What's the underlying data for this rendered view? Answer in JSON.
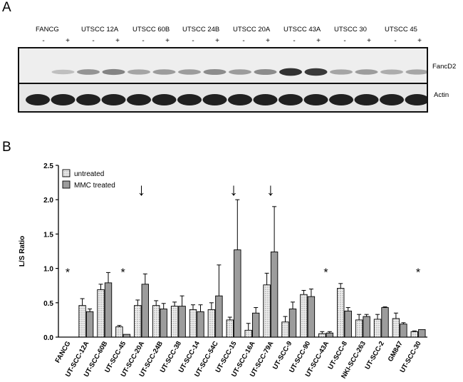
{
  "panel_a": {
    "letter": "A",
    "lane_labels": [
      "FANCG",
      "UTSCC 12A",
      "UTSCC 60B",
      "UTSCC 24B",
      "UTSCC 20A",
      "UTSCC 43A",
      "UTSCC 30",
      "UTSCC 45"
    ],
    "treatment_signs": [
      "-",
      "+"
    ],
    "band_labels": [
      "FancD2",
      "Actin"
    ],
    "fancd2_intensity_note": "",
    "colors": {
      "blot_border": "#111111",
      "band": "#1a1a1a"
    }
  },
  "panel_b": {
    "letter": "B"
  },
  "chart_data": {
    "type": "bar",
    "title": "",
    "xlabel": "",
    "ylabel": "L/S Ratio",
    "ylim": [
      0,
      2.5
    ],
    "yticks": [
      "0.0",
      "0.5",
      "1.0",
      "1.5",
      "2.0",
      "2.5"
    ],
    "grid": false,
    "legend_position": "top-left",
    "categories": [
      "FANCG",
      "UT-SCC-12A",
      "UT-SCC-60B",
      "UT-SCC-45",
      "UT-SCC-20A",
      "UT-SCC-24B",
      "UT-SCC-38",
      "UT-SCC-14",
      "UT-SCC-54C",
      "UT-SCC-15",
      "UT-SCC-16A",
      "UT-SCC-79A",
      "UT-SCC-9",
      "UT-SCC-90",
      "UT-SCC-43A",
      "UT-SCC-8",
      "NKI-SCC-263",
      "UT-SCC-2",
      "GM847",
      "UT-SCC-30"
    ],
    "series": [
      {
        "name": "untreated",
        "color": "#e8e8e8",
        "pattern": "dotted",
        "values": [
          0,
          0.46,
          0.69,
          0.15,
          0.46,
          0.46,
          0.45,
          0.4,
          0.4,
          0.25,
          0.1,
          0.76,
          0.22,
          0.62,
          0.05,
          0.71,
          0.25,
          0.26,
          0.27,
          0.08
        ],
        "errors": [
          0,
          0.1,
          0.08,
          0.02,
          0.08,
          0.07,
          0.06,
          0.07,
          0.1,
          0.04,
          0.1,
          0.17,
          0.08,
          0.06,
          0.03,
          0.07,
          0.08,
          0.07,
          0.08,
          0.01
        ]
      },
      {
        "name": "MMC treated",
        "color": "#9c9c9c",
        "pattern": "solid",
        "values": [
          0,
          0.37,
          0.79,
          0.04,
          0.77,
          0.41,
          0.45,
          0.37,
          0.6,
          1.27,
          0.35,
          1.24,
          0.41,
          0.59,
          0.06,
          0.38,
          0.3,
          0.43,
          0.19,
          0.11
        ],
        "errors": [
          0,
          0.04,
          0.15,
          0.0,
          0.15,
          0.08,
          0.15,
          0.1,
          0.45,
          0.73,
          0.08,
          0.66,
          0.1,
          0.11,
          0.02,
          0.05,
          0.03,
          0.01,
          0.02,
          0.0
        ]
      }
    ],
    "annotations": {
      "asterisk": {
        "symbol": "*",
        "categories": [
          "FANCG",
          "UT-SCC-45",
          "UT-SCC-43A",
          "UT-SCC-30"
        ],
        "value": 0.97
      },
      "arrows": {
        "symbol": "↓",
        "categories": [
          "UT-SCC-20A",
          "UT-SCC-15",
          "UT-SCC-79A"
        ],
        "value": 2.17
      }
    }
  }
}
